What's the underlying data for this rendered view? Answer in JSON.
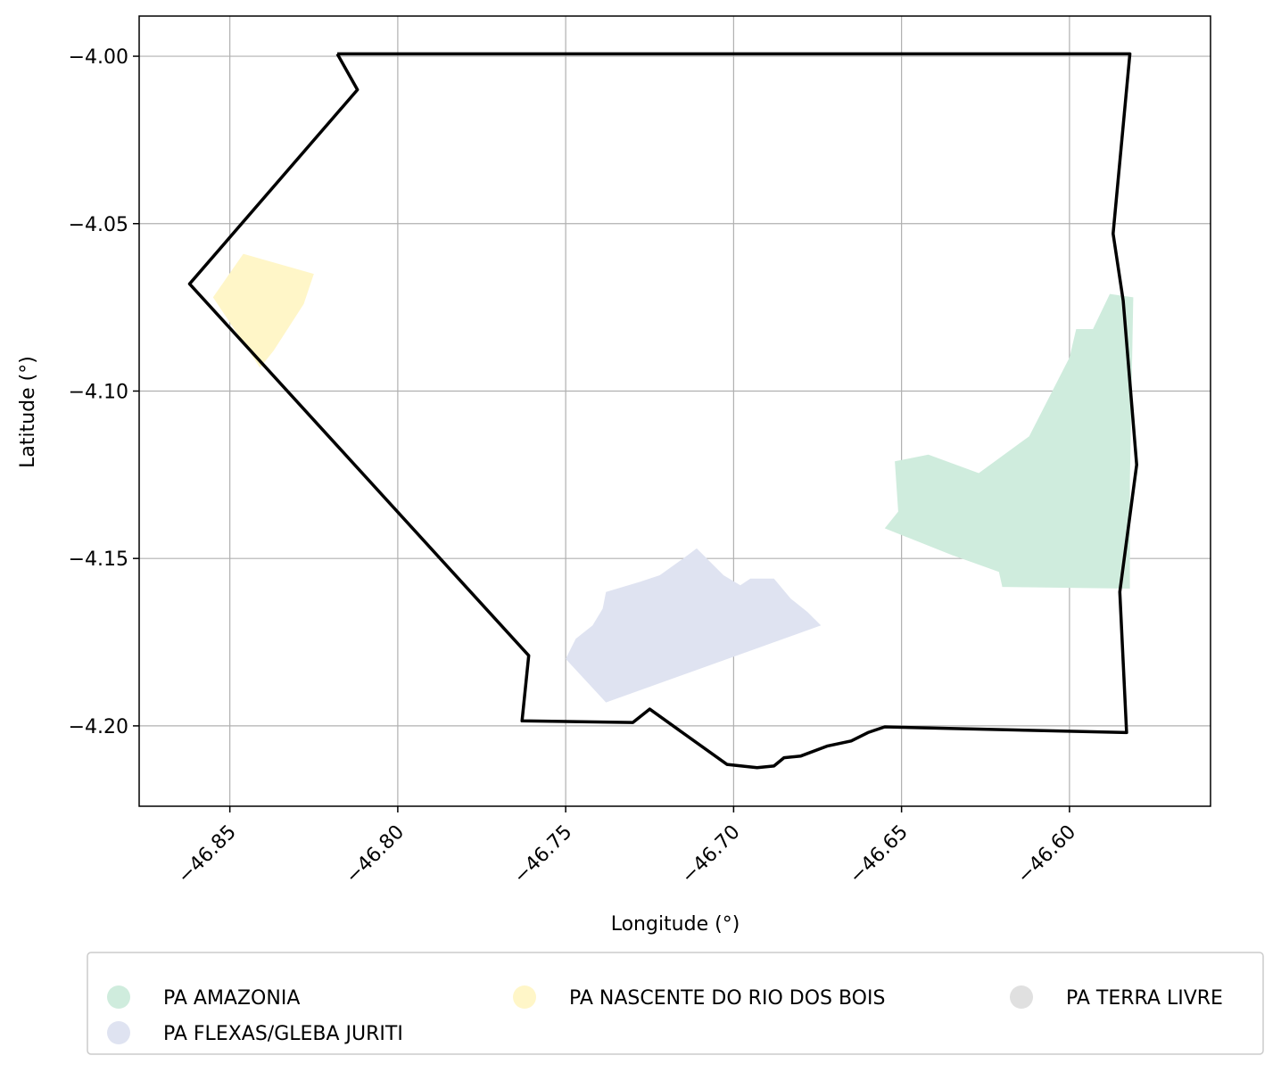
{
  "chart_data": {
    "type": "map",
    "title": "",
    "xlabel": "Longitude (°)",
    "ylabel": "Latitude (°)",
    "xlim": [
      -46.877,
      -46.558
    ],
    "ylim": [
      -4.224,
      -3.988
    ],
    "xticks": [
      -46.85,
      -46.8,
      -46.75,
      -46.7,
      -46.65,
      -46.6
    ],
    "xtick_labels": [
      "−46.85",
      "−46.80",
      "−46.75",
      "−46.70",
      "−46.65",
      "−46.60"
    ],
    "yticks": [
      -4.0,
      -4.05,
      -4.1,
      -4.15,
      -4.2
    ],
    "ytick_labels": [
      "−4.00",
      "−4.05",
      "−4.10",
      "−4.15",
      "−4.20"
    ],
    "grid": true,
    "boundary": {
      "color": "#000000",
      "coords": [
        [
          -46.818,
          -3.9993
        ],
        [
          -46.582,
          -3.9993
        ],
        [
          -46.587,
          -4.053
        ],
        [
          -46.584,
          -4.073
        ],
        [
          -46.58,
          -4.122
        ],
        [
          -46.585,
          -4.16
        ],
        [
          -46.583,
          -4.202
        ],
        [
          -46.655,
          -4.2003
        ],
        [
          -46.66,
          -4.202
        ],
        [
          -46.665,
          -4.2045
        ],
        [
          -46.672,
          -4.206
        ],
        [
          -46.68,
          -4.209
        ],
        [
          -46.685,
          -4.2095
        ],
        [
          -46.688,
          -4.212
        ],
        [
          -46.693,
          -4.2125
        ],
        [
          -46.702,
          -4.2115
        ],
        [
          -46.725,
          -4.195
        ],
        [
          -46.73,
          -4.199
        ],
        [
          -46.763,
          -4.1985
        ],
        [
          -46.761,
          -4.179
        ],
        [
          -46.862,
          -4.068
        ],
        [
          -46.812,
          -4.01
        ],
        [
          -46.818,
          -3.9993
        ]
      ]
    },
    "settlements": [
      {
        "name": "PA AMAZONIA",
        "color": "#cfecdd",
        "coords": [
          [
            -46.652,
            -4.121
          ],
          [
            -46.642,
            -4.119
          ],
          [
            -46.627,
            -4.1245
          ],
          [
            -46.612,
            -4.1135
          ],
          [
            -46.6,
            -4.09
          ],
          [
            -46.598,
            -4.0815
          ],
          [
            -46.593,
            -4.0815
          ],
          [
            -46.588,
            -4.071
          ],
          [
            -46.581,
            -4.072
          ],
          [
            -46.582,
            -4.127
          ],
          [
            -46.582,
            -4.159
          ],
          [
            -46.62,
            -4.1585
          ],
          [
            -46.621,
            -4.154
          ],
          [
            -46.635,
            -4.149
          ],
          [
            -46.655,
            -4.141
          ],
          [
            -46.651,
            -4.136
          ],
          [
            -46.652,
            -4.121
          ]
        ]
      },
      {
        "name": "PA FLEXAS/GLEBA JURITI",
        "color": "#dfe3f1",
        "coords": [
          [
            -46.75,
            -4.18
          ],
          [
            -46.738,
            -4.193
          ],
          [
            -46.674,
            -4.17
          ],
          [
            -46.678,
            -4.166
          ],
          [
            -46.683,
            -4.162
          ],
          [
            -46.688,
            -4.156
          ],
          [
            -46.695,
            -4.156
          ],
          [
            -46.698,
            -4.158
          ],
          [
            -46.703,
            -4.155
          ],
          [
            -46.711,
            -4.147
          ],
          [
            -46.715,
            -4.15
          ],
          [
            -46.722,
            -4.155
          ],
          [
            -46.728,
            -4.157
          ],
          [
            -46.738,
            -4.16
          ],
          [
            -46.739,
            -4.165
          ],
          [
            -46.742,
            -4.17
          ],
          [
            -46.747,
            -4.174
          ],
          [
            -46.75,
            -4.18
          ]
        ]
      },
      {
        "name": "PA NASCENTE DO RIO DOS BOIS",
        "color": "#fff6c8",
        "coords": [
          [
            -46.855,
            -4.072
          ],
          [
            -46.846,
            -4.059
          ],
          [
            -46.825,
            -4.065
          ],
          [
            -46.828,
            -4.074
          ],
          [
            -46.837,
            -4.088
          ],
          [
            -46.841,
            -4.093
          ],
          [
            -46.855,
            -4.072
          ]
        ]
      }
    ],
    "legend": {
      "placement": "below",
      "entries": [
        {
          "label": "PA AMAZONIA",
          "color": "#cfecdd"
        },
        {
          "label": "PA FLEXAS/GLEBA JURITI",
          "color": "#dfe3f1"
        },
        {
          "label": "PA NASCENTE DO RIO DOS BOIS",
          "color": "#fff6c8"
        },
        {
          "label": "PA TERRA LIVRE",
          "color": "#e0e0e0"
        }
      ]
    }
  }
}
